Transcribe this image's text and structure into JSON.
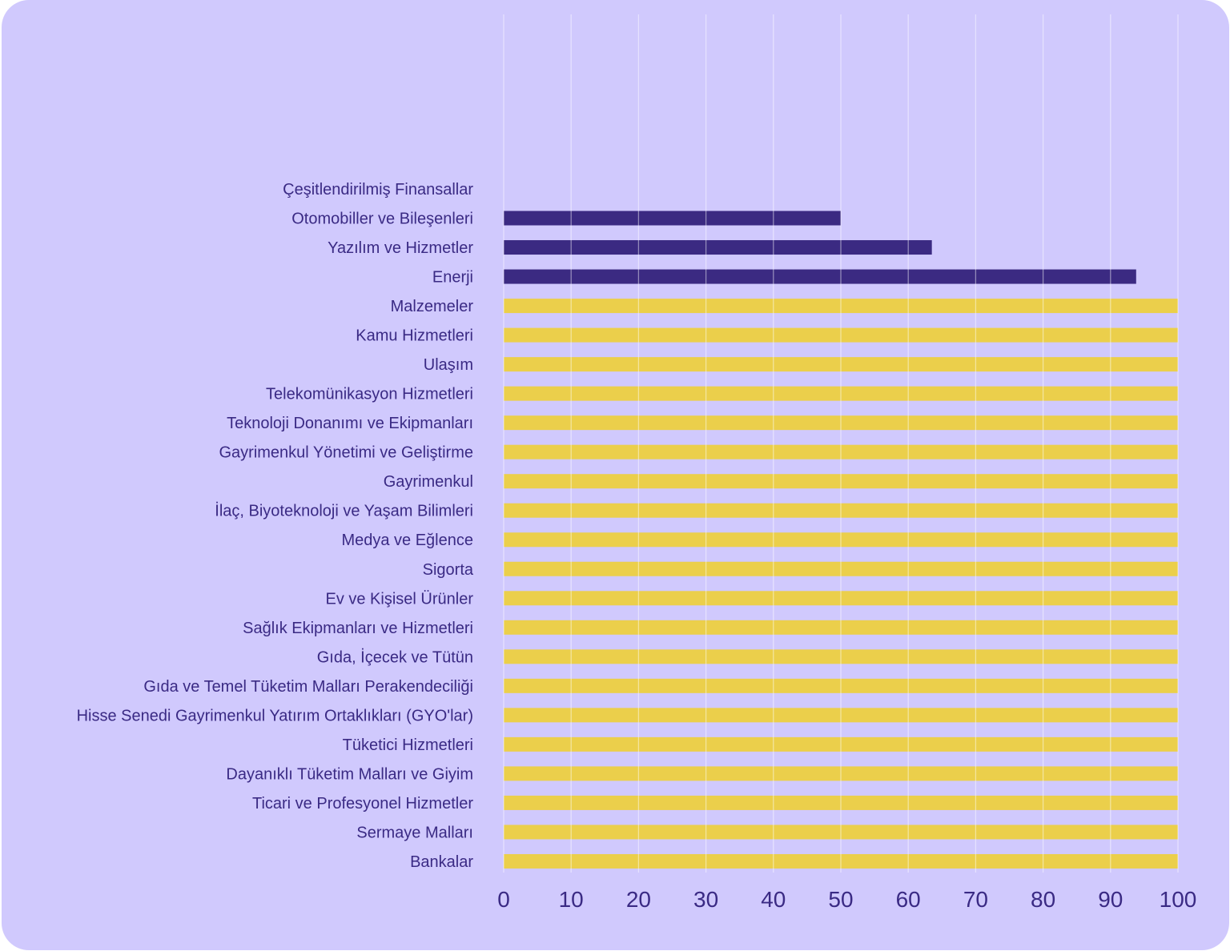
{
  "chart_data": {
    "type": "bar",
    "orientation": "horizontal",
    "title": "",
    "xlabel": "",
    "ylabel": "",
    "xlim": [
      0,
      100
    ],
    "xticks": [
      "0",
      "10",
      "20",
      "30",
      "40",
      "50",
      "60",
      "70",
      "80",
      "90",
      "100"
    ],
    "grid": true,
    "categories": [
      "Çeşitlendirilmiş Finansallar",
      "Otomobiller ve Bileşenleri",
      "Yazılım ve Hizmetler",
      "Enerji",
      "Malzemeler",
      "Kamu Hizmetleri",
      "Ulaşım",
      "Telekomünikasyon Hizmetleri",
      "Teknoloji Donanımı ve Ekipmanları",
      "Gayrimenkul Yönetimi ve Geliştirme",
      "Gayrimenkul",
      "İlaç, Biyoteknoloji ve Yaşam Bilimleri",
      "Medya ve Eğlence",
      "Sigorta",
      "Ev ve Kişisel Ürünler",
      "Sağlık Ekipmanları ve Hizmetleri",
      "Gıda, İçecek ve Tütün",
      "Gıda ve Temel Tüketim Malları Perakendeciliği",
      "Hisse Senedi Gayrimenkul Yatırım Ortaklıkları (GYO'lar)",
      "Tüketici Hizmetleri",
      "Dayanıklı Tüketim Malları ve Giyim",
      "Ticari ve Profesyonel Hizmetler",
      "Sermaye Malları",
      "Bankalar"
    ],
    "values": [
      0,
      50,
      63.5,
      93.8,
      100,
      100,
      100,
      100,
      100,
      100,
      100,
      100,
      100,
      100,
      100,
      100,
      100,
      100,
      100,
      100,
      100,
      100,
      100,
      100
    ],
    "bar_colors": [
      "#3b2a82",
      "#3b2a82",
      "#3b2a82",
      "#3b2a82",
      "#ebcf4b",
      "#ebcf4b",
      "#ebcf4b",
      "#ebcf4b",
      "#ebcf4b",
      "#ebcf4b",
      "#ebcf4b",
      "#ebcf4b",
      "#ebcf4b",
      "#ebcf4b",
      "#ebcf4b",
      "#ebcf4b",
      "#ebcf4b",
      "#ebcf4b",
      "#ebcf4b",
      "#ebcf4b",
      "#ebcf4b",
      "#ebcf4b",
      "#ebcf4b",
      "#ebcf4b"
    ]
  }
}
